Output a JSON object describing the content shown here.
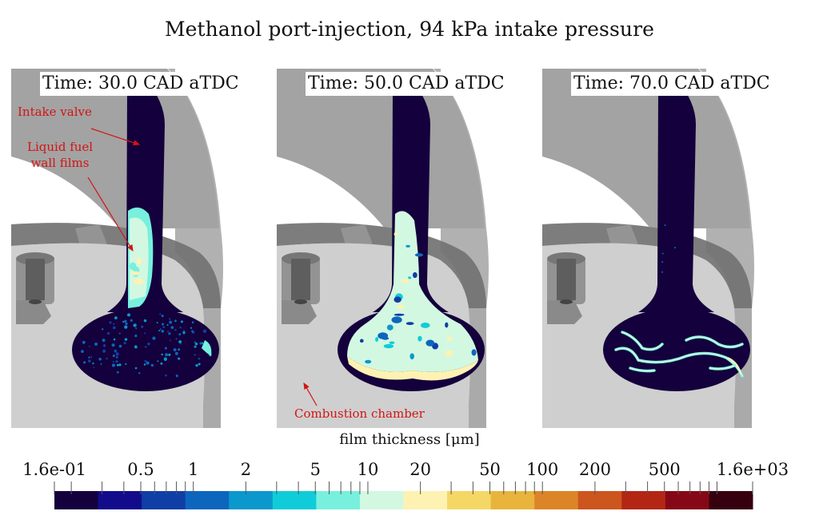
{
  "title": "Methanol port-injection, 94 kPa intake pressure",
  "panels": [
    {
      "time_label": "Time: 30.0 CAD aTDC",
      "time_cad": 30.0,
      "film_state": "film concentrated on valve stem, sparse droplets on valve head"
    },
    {
      "time_label": "Time: 50.0 CAD aTDC",
      "time_cad": 50.0,
      "film_state": "film spread down stem and across valve head"
    },
    {
      "time_label": "Time: 70.0 CAD aTDC",
      "time_cad": 70.0,
      "film_state": "thin streaks of film on valve head, stem mostly dry"
    }
  ],
  "annotations": {
    "intake_valve": "Intake valve",
    "liquid_fuel_line1": "Liquid fuel",
    "liquid_fuel_line2": "wall films",
    "combustion_chamber": "Combustion chamber",
    "arrow_color": "#d41414"
  },
  "colors": {
    "geometry_light": "#cfcfcf",
    "geometry_mid": "#a3a3a3",
    "geometry_dark": "#6e6e6e",
    "valve_base": "#14003c"
  },
  "colorbar": {
    "title": "film thickness [μm]",
    "scale": "log",
    "range": [
      0.16,
      1600
    ],
    "labels": [
      {
        "text": "1.6e-01",
        "value": 0.16
      },
      {
        "text": "0.5",
        "value": 0.5
      },
      {
        "text": "1",
        "value": 1
      },
      {
        "text": "2",
        "value": 2
      },
      {
        "text": "5",
        "value": 5
      },
      {
        "text": "10",
        "value": 10
      },
      {
        "text": "20",
        "value": 20
      },
      {
        "text": "50",
        "value": 50
      },
      {
        "text": "100",
        "value": 100
      },
      {
        "text": "200",
        "value": 200
      },
      {
        "text": "500",
        "value": 500
      },
      {
        "text": "1.6e+03",
        "value": 1600
      }
    ],
    "minor_ticks": [
      0.16,
      0.2,
      0.3,
      0.4,
      0.5,
      0.6,
      0.7,
      0.8,
      0.9,
      1,
      2,
      3,
      4,
      5,
      6,
      7,
      8,
      9,
      10,
      20,
      30,
      40,
      50,
      60,
      70,
      80,
      90,
      100,
      200,
      300,
      400,
      500,
      600,
      700,
      800,
      900,
      1000,
      1600
    ],
    "swatches": [
      "#14003c",
      "#120c8c",
      "#0f3ea6",
      "#0c66be",
      "#0b98cc",
      "#10ccd8",
      "#78f0de",
      "#d2f8e2",
      "#fdf2b2",
      "#f4d764",
      "#e8b43c",
      "#dc8528",
      "#cc561e",
      "#b42614",
      "#860816",
      "#36000f"
    ]
  }
}
